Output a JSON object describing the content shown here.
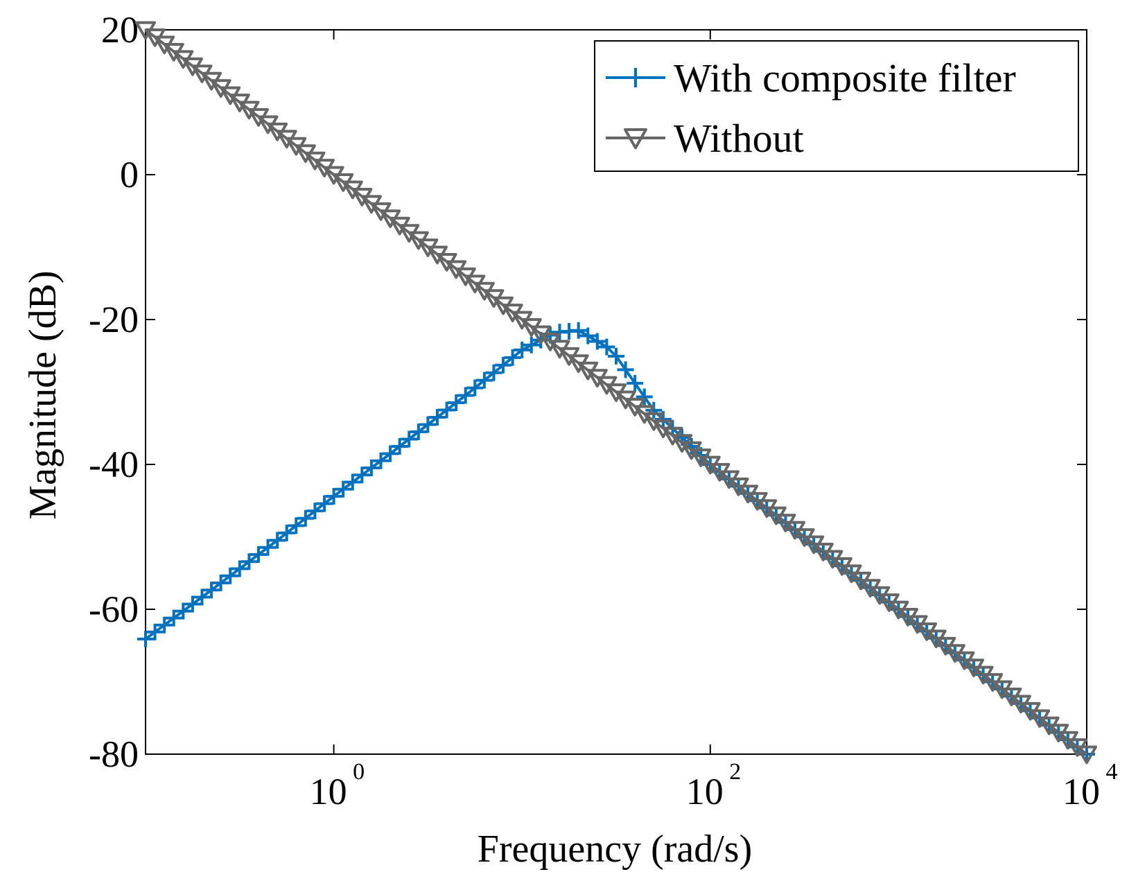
{
  "chart_data": {
    "type": "line",
    "xlabel": "Frequency (rad/s)",
    "ylabel": "Magnitude (dB)",
    "x_scale": "log",
    "xlim": [
      0.1,
      10000
    ],
    "ylim": [
      -80,
      20
    ],
    "x_ticks": [
      {
        "value": 1,
        "base": "10",
        "exp": "0"
      },
      {
        "value": 100,
        "base": "10",
        "exp": "2"
      },
      {
        "value": 10000,
        "base": "10",
        "exp": "4"
      }
    ],
    "y_ticks": [
      {
        "value": 20,
        "label": "20"
      },
      {
        "value": 0,
        "label": "0"
      },
      {
        "value": -20,
        "label": "-20"
      },
      {
        "value": -40,
        "label": "-40"
      },
      {
        "value": -60,
        "label": "-60"
      },
      {
        "value": -80,
        "label": "-80"
      }
    ],
    "grid": false,
    "legend_position": "top-right",
    "series": [
      {
        "name": "With composite filter",
        "color": "#0072BD",
        "marker": "plus",
        "x": [
          0.1,
          0.2,
          0.5,
          1,
          2,
          5,
          10,
          15,
          20,
          30,
          50,
          100,
          1000,
          10000
        ],
        "y": [
          -64.1,
          -58.3,
          -50.5,
          -44.4,
          -38.5,
          -30.5,
          -24.2,
          -21.8,
          -21.5,
          -24.2,
          -32.5,
          -40.0,
          -60.0,
          -80.0
        ]
      },
      {
        "name": "Without",
        "color": "#666666",
        "marker": "triangle-down",
        "x": [
          0.1,
          10000
        ],
        "y": [
          20,
          -80
        ]
      }
    ]
  }
}
